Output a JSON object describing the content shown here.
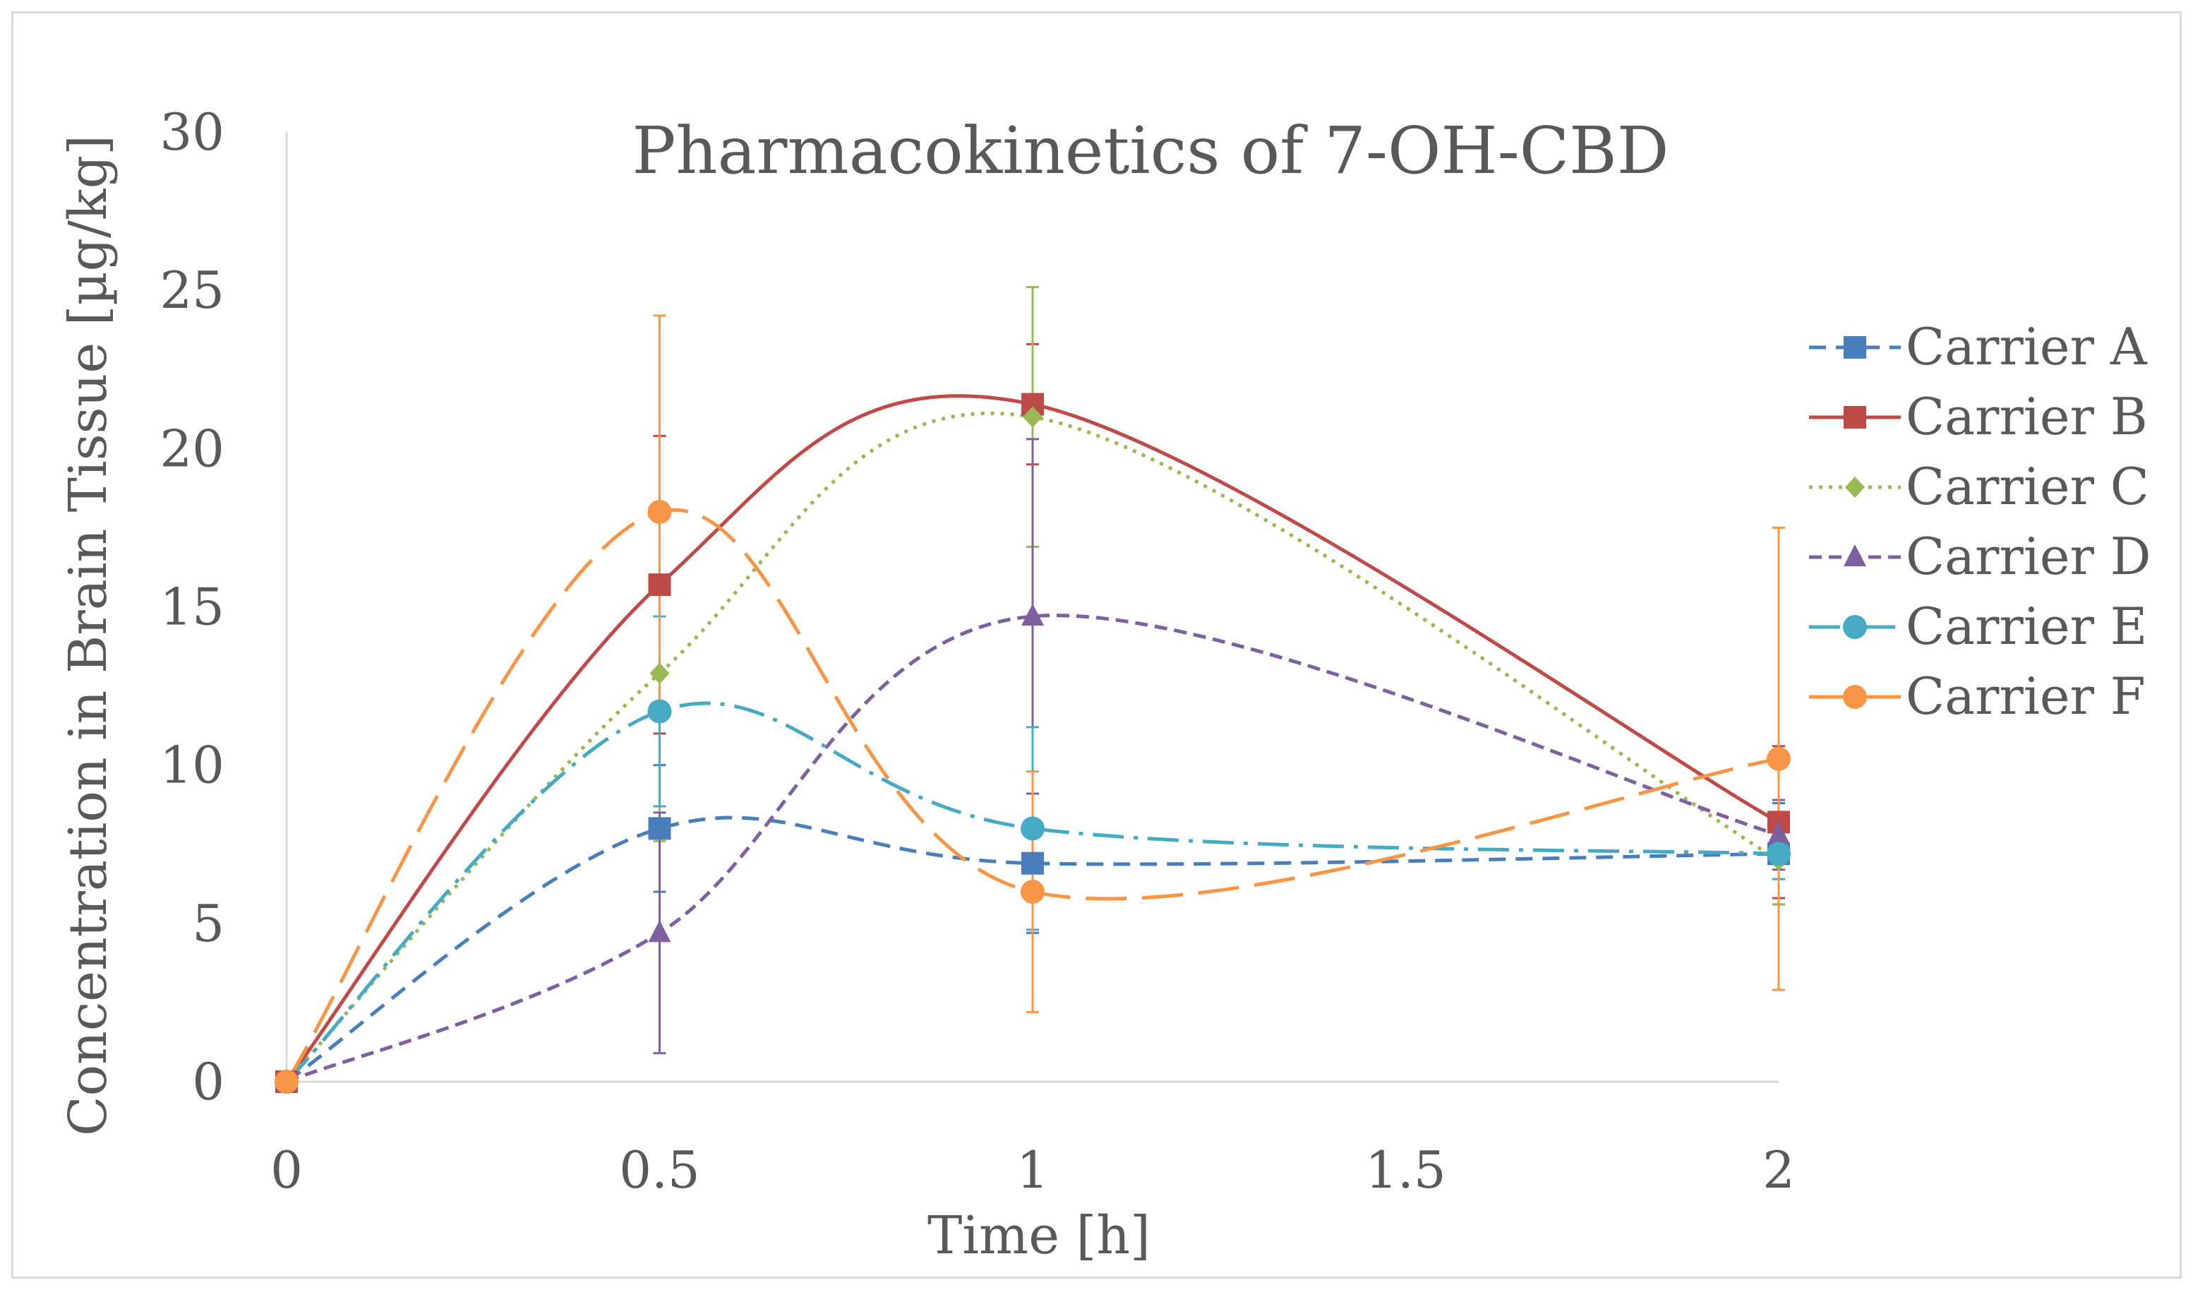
{
  "chart_data": {
    "type": "line",
    "title": "Pharmacokinetics of 7-OH-CBD",
    "xlabel": "Time [h]",
    "ylabel": "Concentration in Brain Tissue [µg/kg]",
    "xlim": [
      0,
      2
    ],
    "ylim": [
      0,
      30
    ],
    "x_ticks": [
      0,
      0.5,
      1,
      1.5,
      2
    ],
    "x_tick_labels": [
      "0",
      "0.5",
      "1",
      "1.5",
      "2"
    ],
    "y_ticks": [
      0,
      5,
      10,
      15,
      20,
      25,
      30
    ],
    "y_tick_labels": [
      "0",
      "5",
      "10",
      "15",
      "20",
      "25",
      "30"
    ],
    "grid": false,
    "legend_position": "right",
    "x": [
      0,
      0.5,
      1,
      2
    ],
    "series": [
      {
        "name": "Carrier A",
        "color": "#4a7ebb",
        "marker": "square",
        "dash": "short-dash",
        "values": [
          0,
          8.0,
          6.9,
          7.2
        ],
        "errors": [
          0,
          2.0,
          2.2,
          1.6
        ]
      },
      {
        "name": "Carrier B",
        "color": "#be4b48",
        "marker": "square",
        "dash": "solid",
        "values": [
          0,
          15.7,
          21.4,
          8.2
        ],
        "errors": [
          0,
          4.7,
          1.9,
          2.4
        ]
      },
      {
        "name": "Carrier C",
        "color": "#98b954",
        "marker": "diamond",
        "dash": "dotted",
        "values": [
          0,
          12.9,
          21.0,
          7.0
        ],
        "errors": [
          0,
          5.3,
          4.1,
          1.4
        ]
      },
      {
        "name": "Carrier D",
        "color": "#7d60a0",
        "marker": "triangle",
        "dash": "dashed",
        "values": [
          0,
          4.7,
          14.7,
          7.8
        ],
        "errors": [
          0,
          3.8,
          5.6,
          1.1
        ]
      },
      {
        "name": "Carrier E",
        "color": "#46aac5",
        "marker": "circle",
        "dash": "dash-dot",
        "values": [
          0,
          11.7,
          8.0,
          7.2
        ],
        "errors": [
          0,
          3.0,
          3.2,
          0.8
        ]
      },
      {
        "name": "Carrier F",
        "color": "#f79646",
        "marker": "circle",
        "dash": "long-dash",
        "values": [
          0,
          18.0,
          6.0,
          10.2
        ],
        "errors": [
          0,
          6.2,
          3.8,
          7.3
        ]
      }
    ]
  }
}
